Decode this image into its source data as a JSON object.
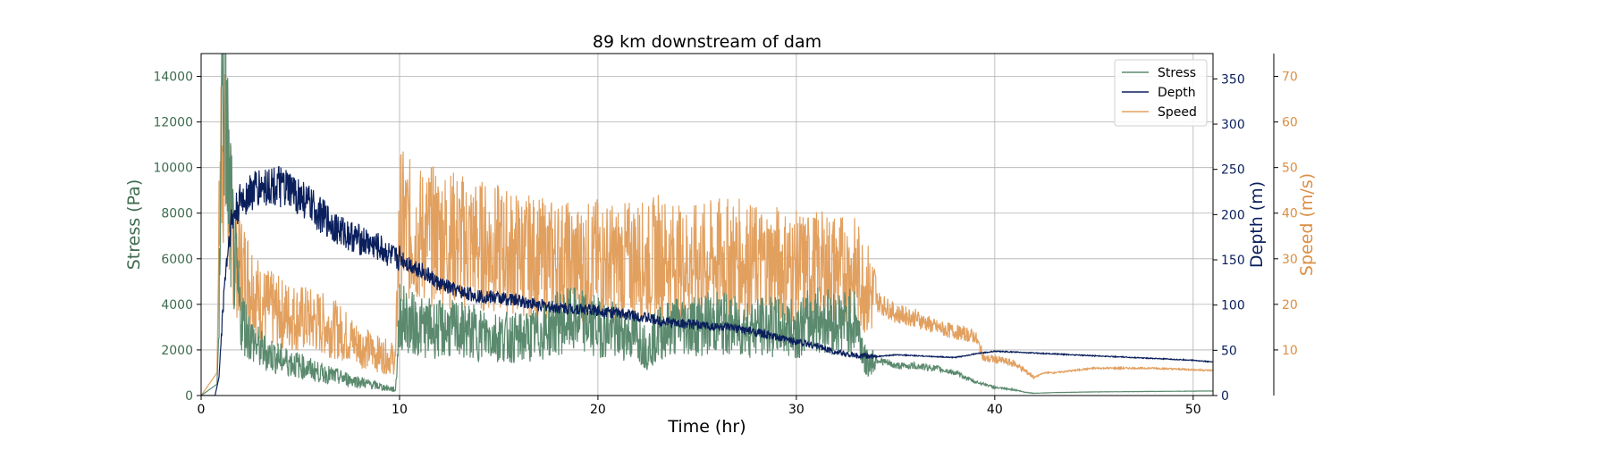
{
  "chart_data": {
    "type": "line",
    "title": "89 km downstream of dam",
    "xlabel": "Time (hr)",
    "xlim": [
      0,
      51
    ],
    "x_ticks": [
      "0",
      "10",
      "20",
      "30",
      "40",
      "50"
    ],
    "grid": true,
    "legend_position": "top-right",
    "axes": [
      {
        "id": "stress",
        "label": "Stress (Pa)",
        "side": "left",
        "color": "#3e6b4f",
        "lim": [
          0,
          15000
        ],
        "ticks": [
          "0",
          "2000",
          "4000",
          "6000",
          "8000",
          "10000",
          "12000",
          "14000"
        ]
      },
      {
        "id": "depth",
        "label": "Depth (m)",
        "side": "right",
        "color": "#0a1f5c",
        "lim": [
          0,
          378
        ],
        "ticks": [
          "0",
          "50",
          "100",
          "150",
          "200",
          "250",
          "300",
          "350"
        ]
      },
      {
        "id": "speed",
        "label": "Speed (m/s)",
        "side": "right-offset",
        "color": "#dc8f44",
        "lim": [
          0,
          75
        ],
        "ticks": [
          "10",
          "20",
          "30",
          "40",
          "50",
          "60",
          "70"
        ]
      }
    ],
    "series": [
      {
        "name": "Stress",
        "axis": "stress",
        "color": "#5b8a6e",
        "x": [
          0,
          0.8,
          0.9,
          1.0,
          1.1,
          1.2,
          1.4,
          1.7,
          2.0,
          2.5,
          3.0,
          4.0,
          5.0,
          6.0,
          7.0,
          8.0,
          9.0,
          9.8,
          10.0,
          10.5,
          11.0,
          12.0,
          13.0,
          14.0,
          15.0,
          16.0,
          17.0,
          18.0,
          19.0,
          20.0,
          21.0,
          22.0,
          22.5,
          23.0,
          24.0,
          25.0,
          26.0,
          27.0,
          28.0,
          29.0,
          30.0,
          31.0,
          32.0,
          33.0,
          33.5,
          34.0,
          35.0,
          36.0,
          37.0,
          38.0,
          39.0,
          39.5,
          40.0,
          41.0,
          41.5,
          42.0,
          43.0,
          45.0,
          48.0,
          51.0
        ],
        "y": [
          0,
          500,
          3000,
          12500,
          13800,
          14200,
          9000,
          5500,
          3500,
          2500,
          2000,
          1600,
          1300,
          1000,
          800,
          600,
          400,
          250,
          3500,
          3200,
          3000,
          2900,
          2900,
          2700,
          2600,
          2500,
          2700,
          3200,
          3300,
          3000,
          2800,
          2600,
          2000,
          2700,
          3100,
          3100,
          3200,
          3000,
          3000,
          3000,
          2900,
          3400,
          3200,
          3300,
          1400,
          1600,
          1300,
          1300,
          1200,
          1000,
          600,
          500,
          350,
          250,
          150,
          100,
          130,
          160,
          180,
          200
        ]
      },
      {
        "name": "Depth",
        "axis": "depth",
        "color": "#0a1f5c",
        "x": [
          0,
          0.7,
          0.9,
          1.0,
          1.2,
          1.5,
          2.0,
          2.5,
          3.0,
          3.5,
          4.0,
          5.0,
          6.0,
          7.0,
          8.0,
          9.0,
          9.8,
          10.0,
          10.5,
          11.0,
          12.0,
          13.0,
          14.0,
          15.0,
          16.0,
          17.0,
          18.0,
          19.0,
          20.0,
          21.0,
          22.0,
          23.0,
          24.0,
          25.0,
          26.0,
          27.0,
          28.0,
          29.0,
          30.0,
          31.0,
          32.0,
          33.0,
          34.0,
          35.0,
          36.0,
          37.0,
          38.0,
          39.0,
          40.0,
          41.0,
          42.0,
          44.0,
          46.0,
          48.0,
          50.0,
          51.0
        ],
        "y": [
          0,
          0,
          20,
          60,
          130,
          190,
          215,
          225,
          230,
          232,
          230,
          220,
          200,
          182,
          172,
          163,
          150,
          153,
          145,
          140,
          123,
          115,
          110,
          108,
          105,
          100,
          97,
          96,
          94,
          91,
          88,
          83,
          80,
          78,
          76,
          74,
          70,
          64,
          60,
          55,
          48,
          44,
          43,
          45,
          44,
          43,
          42,
          46,
          49,
          48,
          47,
          45,
          43,
          41,
          39,
          37
        ]
      },
      {
        "name": "Speed",
        "axis": "speed",
        "color": "#e2a05f",
        "x": [
          0,
          0.8,
          0.9,
          1.0,
          1.1,
          1.2,
          1.4,
          1.7,
          2.0,
          2.5,
          3.0,
          4.0,
          5.0,
          6.0,
          7.0,
          8.0,
          9.0,
          9.8,
          10.0,
          10.5,
          11.0,
          12.0,
          13.0,
          14.0,
          15.0,
          16.0,
          17.0,
          18.0,
          19.0,
          20.0,
          21.0,
          22.0,
          22.5,
          23.0,
          24.0,
          25.0,
          26.0,
          27.0,
          28.0,
          29.0,
          30.0,
          31.0,
          32.0,
          33.0,
          34.0,
          35.0,
          36.0,
          37.0,
          38.0,
          39.0,
          39.5,
          40.0,
          41.0,
          42.0,
          42.5,
          43.0,
          45.0,
          48.0,
          51.0
        ],
        "y": [
          0,
          5,
          35,
          55,
          58,
          50,
          42,
          32,
          28,
          25,
          20,
          18,
          17,
          16,
          14,
          11,
          9,
          8,
          38,
          36,
          35,
          35,
          34,
          33,
          32,
          31,
          30,
          30,
          29,
          30,
          29,
          30,
          29,
          31,
          29,
          29,
          30,
          30,
          29,
          29,
          28,
          28,
          28,
          27,
          21,
          18,
          17,
          15,
          14,
          13,
          8,
          8,
          7,
          4,
          5,
          5,
          6,
          6,
          5.5
        ]
      }
    ]
  }
}
